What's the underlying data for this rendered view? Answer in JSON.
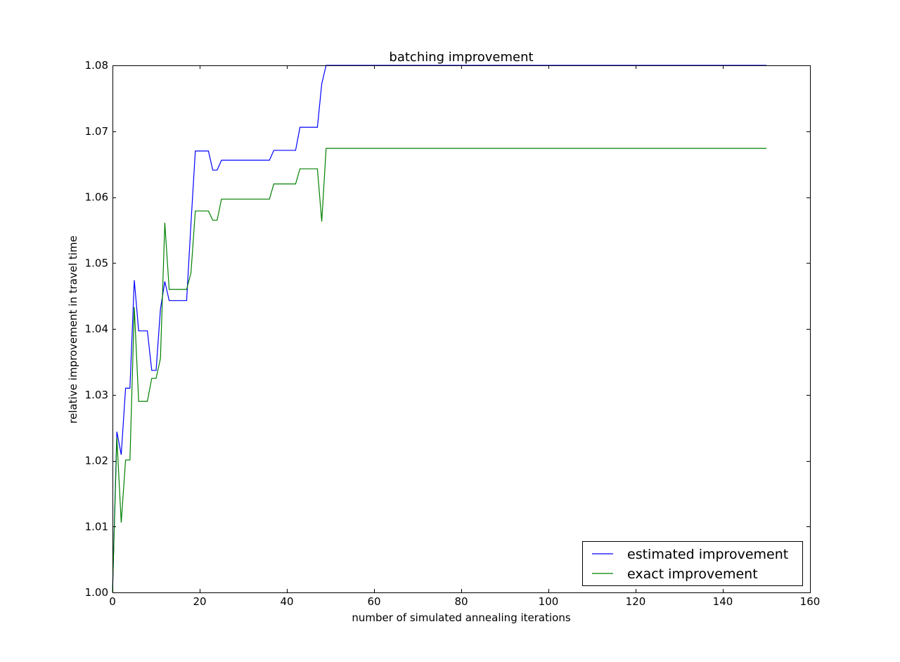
{
  "chart_data": {
    "type": "line",
    "title": "batching improvement",
    "xlabel": "number of simulated annealing iterations",
    "ylabel": "relative improvement in travel time",
    "xlim": [
      0,
      160
    ],
    "ylim": [
      1.0,
      1.08
    ],
    "x_ticks": [
      0,
      20,
      40,
      60,
      80,
      100,
      120,
      140,
      160
    ],
    "y_ticks": [
      1.0,
      1.01,
      1.02,
      1.03,
      1.04,
      1.05,
      1.06,
      1.07,
      1.08
    ],
    "x_tick_labels": [
      "0",
      "20",
      "40",
      "60",
      "80",
      "100",
      "120",
      "140",
      "160"
    ],
    "y_tick_labels": [
      "1.00",
      "1.01",
      "1.02",
      "1.03",
      "1.04",
      "1.05",
      "1.06",
      "1.07",
      "1.08"
    ],
    "grid": false,
    "legend_position": "lower-right",
    "series": [
      {
        "name": "estimated improvement",
        "color": "#0000ff",
        "points": [
          [
            0,
            1.0
          ],
          [
            1,
            1.0244
          ],
          [
            2,
            1.0209
          ],
          [
            3,
            1.031
          ],
          [
            4,
            1.031
          ],
          [
            5,
            1.0474
          ],
          [
            6,
            1.0397
          ],
          [
            7,
            1.0397
          ],
          [
            8,
            1.0397
          ],
          [
            9,
            1.0337
          ],
          [
            10,
            1.0337
          ],
          [
            11,
            1.043
          ],
          [
            12,
            1.0472
          ],
          [
            13,
            1.0443
          ],
          [
            14,
            1.0443
          ],
          [
            15,
            1.0443
          ],
          [
            16,
            1.0443
          ],
          [
            17,
            1.0443
          ],
          [
            18,
            1.056
          ],
          [
            19,
            1.067
          ],
          [
            20,
            1.067
          ],
          [
            21,
            1.067
          ],
          [
            22,
            1.067
          ],
          [
            23,
            1.0641
          ],
          [
            24,
            1.0641
          ],
          [
            25,
            1.0656
          ],
          [
            26,
            1.0656
          ],
          [
            30,
            1.0656
          ],
          [
            36,
            1.0656
          ],
          [
            37,
            1.0671
          ],
          [
            40,
            1.0671
          ],
          [
            42,
            1.0671
          ],
          [
            43,
            1.0706
          ],
          [
            46,
            1.0706
          ],
          [
            47,
            1.0706
          ],
          [
            48,
            1.0772
          ],
          [
            49,
            1.08
          ],
          [
            50,
            1.08
          ],
          [
            60,
            1.08
          ],
          [
            80,
            1.08
          ],
          [
            100,
            1.08
          ],
          [
            120,
            1.08
          ],
          [
            140,
            1.08
          ],
          [
            150,
            1.08
          ]
        ]
      },
      {
        "name": "exact improvement",
        "color": "#008000",
        "points": [
          [
            0,
            1.0
          ],
          [
            1,
            1.0235
          ],
          [
            2,
            1.0106
          ],
          [
            3,
            1.0201
          ],
          [
            4,
            1.0201
          ],
          [
            5,
            1.0433
          ],
          [
            6,
            1.029
          ],
          [
            7,
            1.029
          ],
          [
            8,
            1.029
          ],
          [
            9,
            1.0325
          ],
          [
            10,
            1.0325
          ],
          [
            11,
            1.0355
          ],
          [
            12,
            1.0561
          ],
          [
            13,
            1.046
          ],
          [
            14,
            1.046
          ],
          [
            15,
            1.046
          ],
          [
            16,
            1.046
          ],
          [
            17,
            1.046
          ],
          [
            18,
            1.0485
          ],
          [
            19,
            1.0579
          ],
          [
            20,
            1.0579
          ],
          [
            21,
            1.0579
          ],
          [
            22,
            1.0579
          ],
          [
            23,
            1.0565
          ],
          [
            24,
            1.0565
          ],
          [
            25,
            1.0597
          ],
          [
            26,
            1.0597
          ],
          [
            30,
            1.0597
          ],
          [
            36,
            1.0597
          ],
          [
            37,
            1.062
          ],
          [
            40,
            1.062
          ],
          [
            42,
            1.062
          ],
          [
            43,
            1.0643
          ],
          [
            46,
            1.0643
          ],
          [
            47,
            1.0643
          ],
          [
            48,
            1.0563
          ],
          [
            49,
            1.0674
          ],
          [
            50,
            1.0674
          ],
          [
            60,
            1.0674
          ],
          [
            80,
            1.0674
          ],
          [
            100,
            1.0674
          ],
          [
            120,
            1.0674
          ],
          [
            140,
            1.0674
          ],
          [
            150,
            1.0674
          ]
        ]
      }
    ]
  }
}
